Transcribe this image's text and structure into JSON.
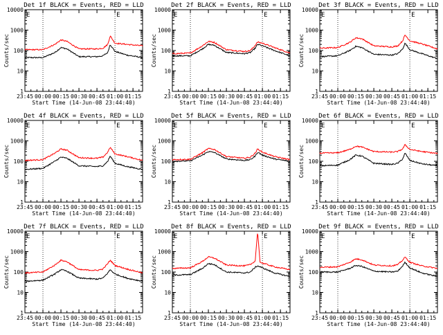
{
  "figure": {
    "background": "#ffffff",
    "axis_color": "#000000"
  },
  "shared": {
    "ylabel": "Counts/sec",
    "xlabel": "Start Time (14-Jun-08 23:44:40)",
    "x_tick_labels": [
      "23:45",
      "00:00",
      "00:15",
      "00:30",
      "00:45",
      "01:00",
      "01:15"
    ],
    "y_tick_labels": [
      "1",
      "10",
      "100",
      "1000",
      "10000"
    ],
    "dotted_marker_times": [
      "00:00",
      "01:00"
    ],
    "marker_letter": "E",
    "events_color": "#000000",
    "lld_color": "#ff0000"
  },
  "chart_data": [
    {
      "type": "line",
      "title": "Det 1f BLACK = Events, RED = LLD",
      "yscale": "log",
      "ylim": [
        1,
        10000
      ],
      "xlim": [
        "23:45",
        "01:23"
      ],
      "grid": false,
      "legend": "none",
      "x": [
        "23:45",
        "00:00",
        "00:10",
        "00:15",
        "00:20",
        "00:30",
        "00:45",
        "00:50",
        "00:54",
        "00:56",
        "01:00",
        "01:10",
        "01:23"
      ],
      "series": [
        {
          "name": "Events",
          "color": "#000000",
          "values": [
            45,
            45,
            80,
            140,
            120,
            50,
            50,
            55,
            80,
            200,
            90,
            60,
            45
          ]
        },
        {
          "name": "LLD",
          "color": "#ff0000",
          "values": [
            110,
            110,
            200,
            330,
            280,
            120,
            120,
            130,
            200,
            520,
            230,
            200,
            170
          ]
        }
      ]
    },
    {
      "type": "line",
      "title": "Det 2f BLACK = Events, RED = LLD",
      "yscale": "log",
      "ylim": [
        1,
        10000
      ],
      "xlim": [
        "23:45",
        "01:23"
      ],
      "grid": false,
      "legend": "none",
      "x": [
        "23:45",
        "00:00",
        "00:10",
        "00:15",
        "00:20",
        "00:30",
        "00:45",
        "00:50",
        "00:54",
        "00:56",
        "01:00",
        "01:10",
        "01:23"
      ],
      "series": [
        {
          "name": "Events",
          "color": "#000000",
          "values": [
            55,
            55,
            120,
            200,
            180,
            80,
            70,
            80,
            130,
            200,
            170,
            100,
            55
          ]
        },
        {
          "name": "LLD",
          "color": "#ff0000",
          "values": [
            70,
            75,
            170,
            280,
            250,
            110,
            90,
            100,
            180,
            260,
            230,
            140,
            75
          ]
        }
      ]
    },
    {
      "type": "line",
      "title": "Det 3f BLACK = Events, RED = LLD",
      "yscale": "log",
      "ylim": [
        1,
        10000
      ],
      "xlim": [
        "23:45",
        "01:23"
      ],
      "grid": false,
      "legend": "none",
      "x": [
        "23:45",
        "00:00",
        "00:10",
        "00:15",
        "00:20",
        "00:30",
        "00:45",
        "00:50",
        "00:54",
        "00:56",
        "01:00",
        "01:10",
        "01:23"
      ],
      "series": [
        {
          "name": "Events",
          "color": "#000000",
          "values": [
            50,
            55,
            100,
            160,
            140,
            65,
            60,
            70,
            120,
            230,
            110,
            70,
            40
          ]
        },
        {
          "name": "LLD",
          "color": "#ff0000",
          "values": [
            130,
            140,
            250,
            420,
            380,
            170,
            150,
            170,
            300,
            580,
            300,
            210,
            120
          ]
        }
      ]
    },
    {
      "type": "line",
      "title": "Det 4f BLACK = Events, RED = LLD",
      "yscale": "log",
      "ylim": [
        1,
        10000
      ],
      "xlim": [
        "23:45",
        "01:23"
      ],
      "grid": false,
      "legend": "none",
      "x": [
        "23:45",
        "00:00",
        "00:10",
        "00:15",
        "00:20",
        "00:30",
        "00:45",
        "00:50",
        "00:54",
        "00:56",
        "01:00",
        "01:10",
        "01:23"
      ],
      "series": [
        {
          "name": "Events",
          "color": "#000000",
          "values": [
            40,
            45,
            100,
            160,
            140,
            60,
            55,
            60,
            100,
            180,
            80,
            55,
            40
          ]
        },
        {
          "name": "LLD",
          "color": "#ff0000",
          "values": [
            110,
            120,
            250,
            400,
            350,
            150,
            140,
            160,
            280,
            480,
            230,
            170,
            110
          ]
        }
      ]
    },
    {
      "type": "line",
      "title": "Det 5f BLACK = Events, RED = LLD",
      "yscale": "log",
      "ylim": [
        1,
        10000
      ],
      "xlim": [
        "23:45",
        "01:23"
      ],
      "grid": false,
      "legend": "none",
      "x": [
        "23:45",
        "00:00",
        "00:10",
        "00:15",
        "00:20",
        "00:30",
        "00:45",
        "00:50",
        "00:54",
        "00:56",
        "01:00",
        "01:10",
        "01:23"
      ],
      "series": [
        {
          "name": "Events",
          "color": "#000000",
          "values": [
            100,
            105,
            200,
            300,
            270,
            130,
            110,
            120,
            180,
            280,
            200,
            130,
            100
          ]
        },
        {
          "name": "LLD",
          "color": "#ff0000",
          "values": [
            120,
            125,
            260,
            420,
            380,
            170,
            140,
            160,
            250,
            400,
            280,
            170,
            120
          ]
        }
      ]
    },
    {
      "type": "line",
      "title": "Det 6f BLACK = Events, RED = LLD",
      "yscale": "log",
      "ylim": [
        1,
        10000
      ],
      "xlim": [
        "23:45",
        "01:23"
      ],
      "grid": false,
      "legend": "none",
      "x": [
        "23:45",
        "00:00",
        "00:10",
        "00:15",
        "00:20",
        "00:30",
        "00:45",
        "00:50",
        "00:54",
        "00:56",
        "01:00",
        "01:10",
        "01:23"
      ],
      "series": [
        {
          "name": "Events",
          "color": "#000000",
          "values": [
            60,
            65,
            120,
            200,
            180,
            80,
            70,
            80,
            130,
            250,
            110,
            75,
            60
          ]
        },
        {
          "name": "LLD",
          "color": "#ff0000",
          "values": [
            250,
            260,
            380,
            550,
            500,
            300,
            280,
            300,
            400,
            650,
            380,
            300,
            240
          ]
        }
      ]
    },
    {
      "type": "line",
      "title": "Det 7f BLACK = Events, RED = LLD",
      "yscale": "log",
      "ylim": [
        1,
        10000
      ],
      "xlim": [
        "23:45",
        "01:23"
      ],
      "grid": false,
      "legend": "none",
      "x": [
        "23:45",
        "00:00",
        "00:10",
        "00:15",
        "00:20",
        "00:30",
        "00:45",
        "00:50",
        "00:54",
        "00:56",
        "01:00",
        "01:10",
        "01:23"
      ],
      "series": [
        {
          "name": "Events",
          "color": "#000000",
          "values": [
            35,
            40,
            80,
            130,
            110,
            50,
            45,
            50,
            90,
            130,
            80,
            50,
            35
          ]
        },
        {
          "name": "LLD",
          "color": "#ff0000",
          "values": [
            90,
            100,
            220,
            380,
            320,
            130,
            120,
            140,
            260,
            380,
            210,
            140,
            90
          ]
        }
      ]
    },
    {
      "type": "line",
      "title": "Det 8f BLACK = Events, RED = LLD",
      "yscale": "log",
      "ylim": [
        1,
        10000
      ],
      "xlim": [
        "23:45",
        "01:23"
      ],
      "grid": false,
      "legend": "none",
      "x": [
        "23:45",
        "00:00",
        "00:10",
        "00:15",
        "00:20",
        "00:30",
        "00:45",
        "00:50",
        "00:54",
        "00:56",
        "00:58",
        "01:10",
        "01:23"
      ],
      "series": [
        {
          "name": "Events",
          "color": "#000000",
          "values": [
            70,
            75,
            150,
            260,
            230,
            100,
            90,
            100,
            170,
            200,
            180,
            90,
            60
          ]
        },
        {
          "name": "LLD",
          "color": "#ff0000",
          "values": [
            150,
            160,
            330,
            550,
            480,
            220,
            200,
            230,
            350,
            10000,
            300,
            180,
            130
          ]
        }
      ]
    },
    {
      "type": "line",
      "title": "Det 9f BLACK = Events, RED = LLD",
      "yscale": "log",
      "ylim": [
        1,
        10000
      ],
      "xlim": [
        "23:45",
        "01:23"
      ],
      "grid": false,
      "legend": "none",
      "x": [
        "23:45",
        "00:00",
        "00:10",
        "00:15",
        "00:20",
        "00:30",
        "00:45",
        "00:50",
        "00:54",
        "00:56",
        "01:00",
        "01:10",
        "01:23"
      ],
      "series": [
        {
          "name": "Events",
          "color": "#000000",
          "values": [
            100,
            100,
            150,
            210,
            190,
            110,
            100,
            110,
            200,
            300,
            160,
            90,
            60
          ]
        },
        {
          "name": "LLD",
          "color": "#ff0000",
          "values": [
            170,
            180,
            300,
            440,
            400,
            220,
            200,
            230,
            380,
            540,
            300,
            200,
            150
          ]
        }
      ]
    }
  ]
}
